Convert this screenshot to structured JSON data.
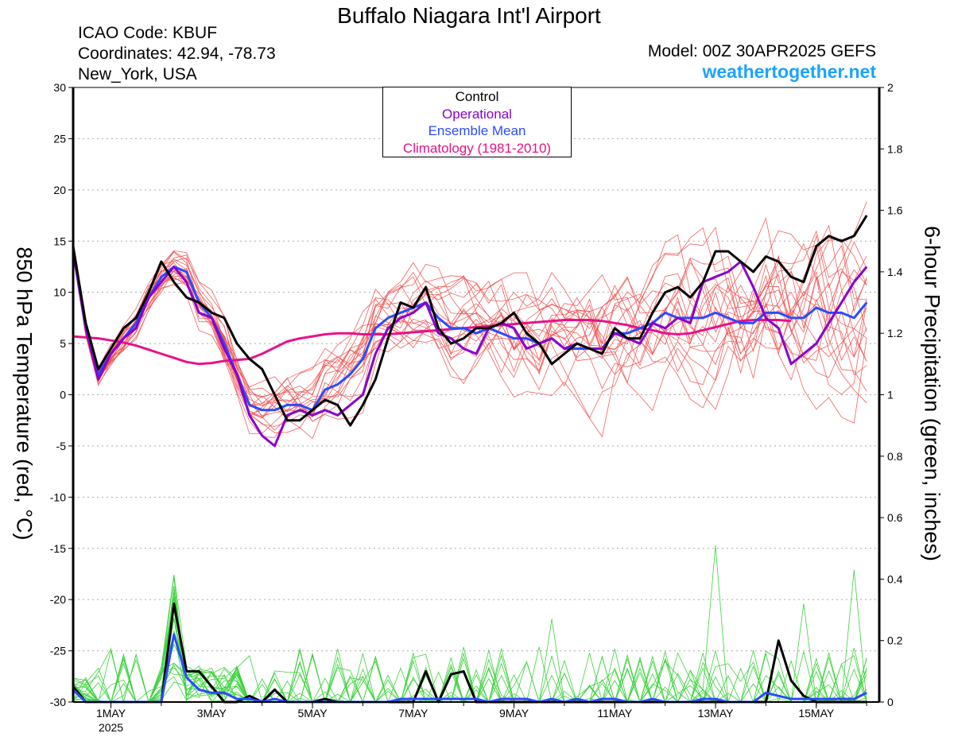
{
  "header": {
    "title": "Buffalo Niagara Int'l Airport",
    "icao": "ICAO Code: KBUF",
    "coordinates": "Coordinates: 42.94, -78.73",
    "location": "New_York, USA",
    "model": "Model: 00Z 30APR2025 GEFS",
    "site": "weathertogether.net"
  },
  "legend": {
    "entries": [
      {
        "label": "Control",
        "color": "#000000"
      },
      {
        "label": "Operational",
        "color": "#8800cc"
      },
      {
        "label": "Ensemble Mean",
        "color": "#2a4bff"
      },
      {
        "label": "Climatology (1981-2010)",
        "color": "#e8118a"
      }
    ]
  },
  "chart_data": {
    "type": "line",
    "title": "Buffalo Niagara Int'l Airport",
    "ylabel_left": "850 hPa Temperature (red, °C)",
    "ylabel_right": "6-hour Precipitation (green, inches)",
    "x_tick_labels": [
      "1MAY",
      "3MAY",
      "5MAY",
      "7MAY",
      "9MAY",
      "11MAY",
      "13MAY",
      "15MAY"
    ],
    "x_tick_day": [
      1,
      3,
      5,
      7,
      9,
      11,
      13,
      15
    ],
    "x_year_label": "2025",
    "x_range_day": [
      0.25,
      16.25
    ],
    "y_left_range": [
      -30,
      30
    ],
    "y_left_ticks": [
      -30,
      -25,
      -20,
      -15,
      -10,
      -5,
      0,
      5,
      10,
      15,
      20,
      25,
      30
    ],
    "y_right_range": [
      0,
      2
    ],
    "y_right_ticks": [
      "0",
      "0.2",
      "0.4",
      "0.6",
      "0.8",
      "1",
      "1.2",
      "1.4",
      "1.6",
      "1.8",
      "2"
    ],
    "grid": "dotted-horizontal",
    "legend_position": "top-center",
    "colors": {
      "members": "#f05050",
      "precip_members": "#3cd23c",
      "control": "#000000",
      "operational": "#8800cc",
      "mean": "#2a4bff",
      "climatology": "#e8118a"
    },
    "time_step_days": 0.25,
    "temperature_series": [
      {
        "name": "Control",
        "role": "control",
        "values": [
          14.5,
          7.0,
          2.5,
          4.5,
          6.5,
          7.5,
          10.0,
          13.0,
          11.0,
          9.5,
          9.0,
          8.0,
          7.5,
          5.0,
          3.5,
          2.5,
          0.0,
          -2.5,
          -2.5,
          -1.5,
          -0.5,
          -1.0,
          -3.0,
          -1.0,
          1.5,
          5.5,
          9.0,
          8.5,
          10.5,
          6.5,
          5.0,
          5.5,
          6.5,
          6.5,
          7.0,
          8.0,
          6.0,
          5.0,
          3.0,
          4.0,
          5.0,
          4.5,
          4.0,
          6.5,
          5.5,
          5.5,
          8.0,
          10.0,
          10.5,
          9.5,
          11.0,
          14.0,
          14.0,
          13.0,
          12.0,
          13.5,
          13.0,
          11.5,
          11.0,
          14.5,
          15.5,
          15.0,
          15.5,
          17.5
        ]
      },
      {
        "name": "Operational",
        "role": "operational",
        "values": [
          14.0,
          6.5,
          1.5,
          4.0,
          5.5,
          6.5,
          9.5,
          11.0,
          12.5,
          11.0,
          8.0,
          7.5,
          4.5,
          2.0,
          -2.0,
          -4.0,
          -5.0,
          -2.0,
          -1.5,
          -2.0,
          -1.5,
          -2.0,
          -1.0,
          0.0,
          4.0,
          6.5,
          7.5,
          8.0,
          9.0,
          6.0,
          5.5,
          4.5,
          4.0,
          6.5,
          7.0,
          6.5,
          4.5,
          5.0,
          5.5,
          4.5,
          5.0,
          4.5,
          4.5,
          6.0,
          5.5,
          5.0,
          7.0,
          6.5,
          7.5,
          7.0,
          11.0,
          11.5,
          12.0,
          13.0,
          10.5,
          7.5,
          6.5,
          3.0,
          4.0,
          5.0,
          7.0,
          9.0,
          11.0,
          12.5
        ]
      },
      {
        "name": "Ensemble Mean",
        "role": "mean",
        "values": [
          14.0,
          6.5,
          2.0,
          4.0,
          5.5,
          7.0,
          9.5,
          11.5,
          12.5,
          12.0,
          9.0,
          7.5,
          5.0,
          2.0,
          -1.0,
          -1.5,
          -1.5,
          -1.0,
          -1.0,
          -1.5,
          0.5,
          1.0,
          2.0,
          3.5,
          6.5,
          7.5,
          8.0,
          8.5,
          9.0,
          7.5,
          6.5,
          6.5,
          6.0,
          6.5,
          6.0,
          5.5,
          5.5,
          5.0,
          5.5,
          4.5,
          4.5,
          4.5,
          4.5,
          6.0,
          6.0,
          6.5,
          7.0,
          8.0,
          7.5,
          7.5,
          7.5,
          8.0,
          7.5,
          7.0,
          7.0,
          8.0,
          8.0,
          7.5,
          7.5,
          8.5,
          8.0,
          8.0,
          7.5,
          9.0
        ]
      },
      {
        "name": "Climatology (1981-2010)",
        "role": "climatology",
        "values": [
          5.7,
          5.6,
          5.5,
          5.3,
          5.1,
          4.8,
          4.4,
          4.0,
          3.6,
          3.2,
          3.0,
          3.1,
          3.3,
          3.4,
          3.5,
          4.0,
          4.6,
          5.2,
          5.5,
          5.7,
          5.9,
          6.0,
          6.0,
          5.9,
          5.9,
          5.9,
          6.0,
          6.1,
          6.2,
          6.3,
          6.4,
          6.5,
          6.6,
          6.7,
          6.8,
          6.9,
          7.0,
          7.1,
          7.2,
          7.3,
          7.3,
          7.3,
          7.2,
          7.0,
          6.8,
          6.5,
          6.3,
          6.0,
          5.9,
          6.0,
          6.3,
          6.6,
          6.9,
          7.2,
          7.3,
          7.3,
          7.3,
          7.2
        ]
      }
    ],
    "precip_series": [
      {
        "name": "Control",
        "role": "control",
        "values": [
          0.05,
          0.0,
          0.0,
          0.0,
          0.0,
          0.0,
          0.0,
          0.0,
          0.32,
          0.1,
          0.1,
          0.05,
          0.0,
          0.0,
          0.02,
          0.0,
          0.04,
          0.0,
          0.0,
          0.0,
          0.01,
          0.0,
          0.0,
          0.0,
          0.0,
          0.0,
          0.0,
          0.0,
          0.1,
          0.0,
          0.09,
          0.1,
          0.0,
          0.0,
          0.0,
          0.0,
          0.0,
          0.0,
          0.0,
          0.0,
          0.0,
          0.0,
          0.0,
          0.0,
          0.0,
          0.0,
          0.0,
          0.0,
          0.0,
          0.0,
          0.0,
          0.0,
          0.0,
          0.0,
          0.0,
          0.0,
          0.2,
          0.07,
          0.02,
          0.0,
          0.0,
          0.0,
          0.0,
          0.0
        ]
      },
      {
        "name": "Ensemble Mean",
        "role": "mean",
        "values": [
          0.04,
          0.0,
          0.0,
          0.0,
          0.0,
          0.0,
          0.0,
          0.0,
          0.22,
          0.08,
          0.04,
          0.03,
          0.03,
          0.01,
          0.01,
          0.0,
          0.01,
          0.0,
          0.0,
          0.0,
          0.0,
          0.0,
          0.0,
          0.0,
          0.0,
          0.0,
          0.01,
          0.01,
          0.01,
          0.01,
          0.01,
          0.01,
          0.01,
          0.0,
          0.01,
          0.01,
          0.01,
          0.0,
          0.01,
          0.0,
          0.01,
          0.0,
          0.01,
          0.01,
          0.0,
          0.0,
          0.01,
          0.0,
          0.0,
          0.0,
          0.01,
          0.01,
          0.0,
          0.0,
          0.0,
          0.03,
          0.02,
          0.01,
          0.01,
          0.01,
          0.01,
          0.01,
          0.01,
          0.03
        ]
      }
    ]
  }
}
